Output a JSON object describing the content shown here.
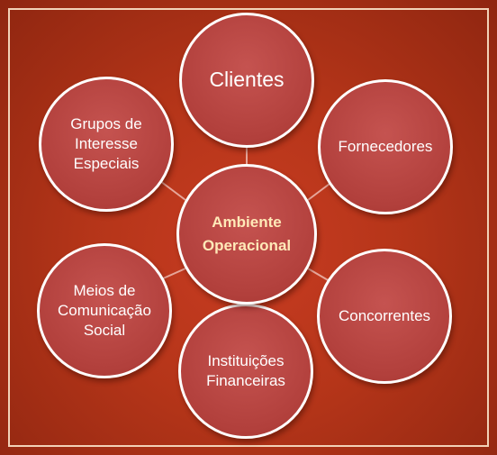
{
  "center": {
    "label": "Ambiente\nOperacional"
  },
  "nodes": {
    "clientes": {
      "label": "Clientes"
    },
    "fornecedores": {
      "label": "Fornecedores"
    },
    "concorrentes": {
      "label": "Concorrentes"
    },
    "instituicoes": {
      "label": "Instituições\nFinanceiras"
    },
    "meios": {
      "label": "Meios de\nComunicação\nSocial"
    },
    "grupos": {
      "label": "Grupos de\nInteresse\nEspeciais"
    }
  },
  "colors": {
    "background": "#b53519",
    "node_fill": "#b2403c",
    "node_border": "#ffffff",
    "center_text": "#ffe9b8",
    "connector": "#e6a69a"
  }
}
